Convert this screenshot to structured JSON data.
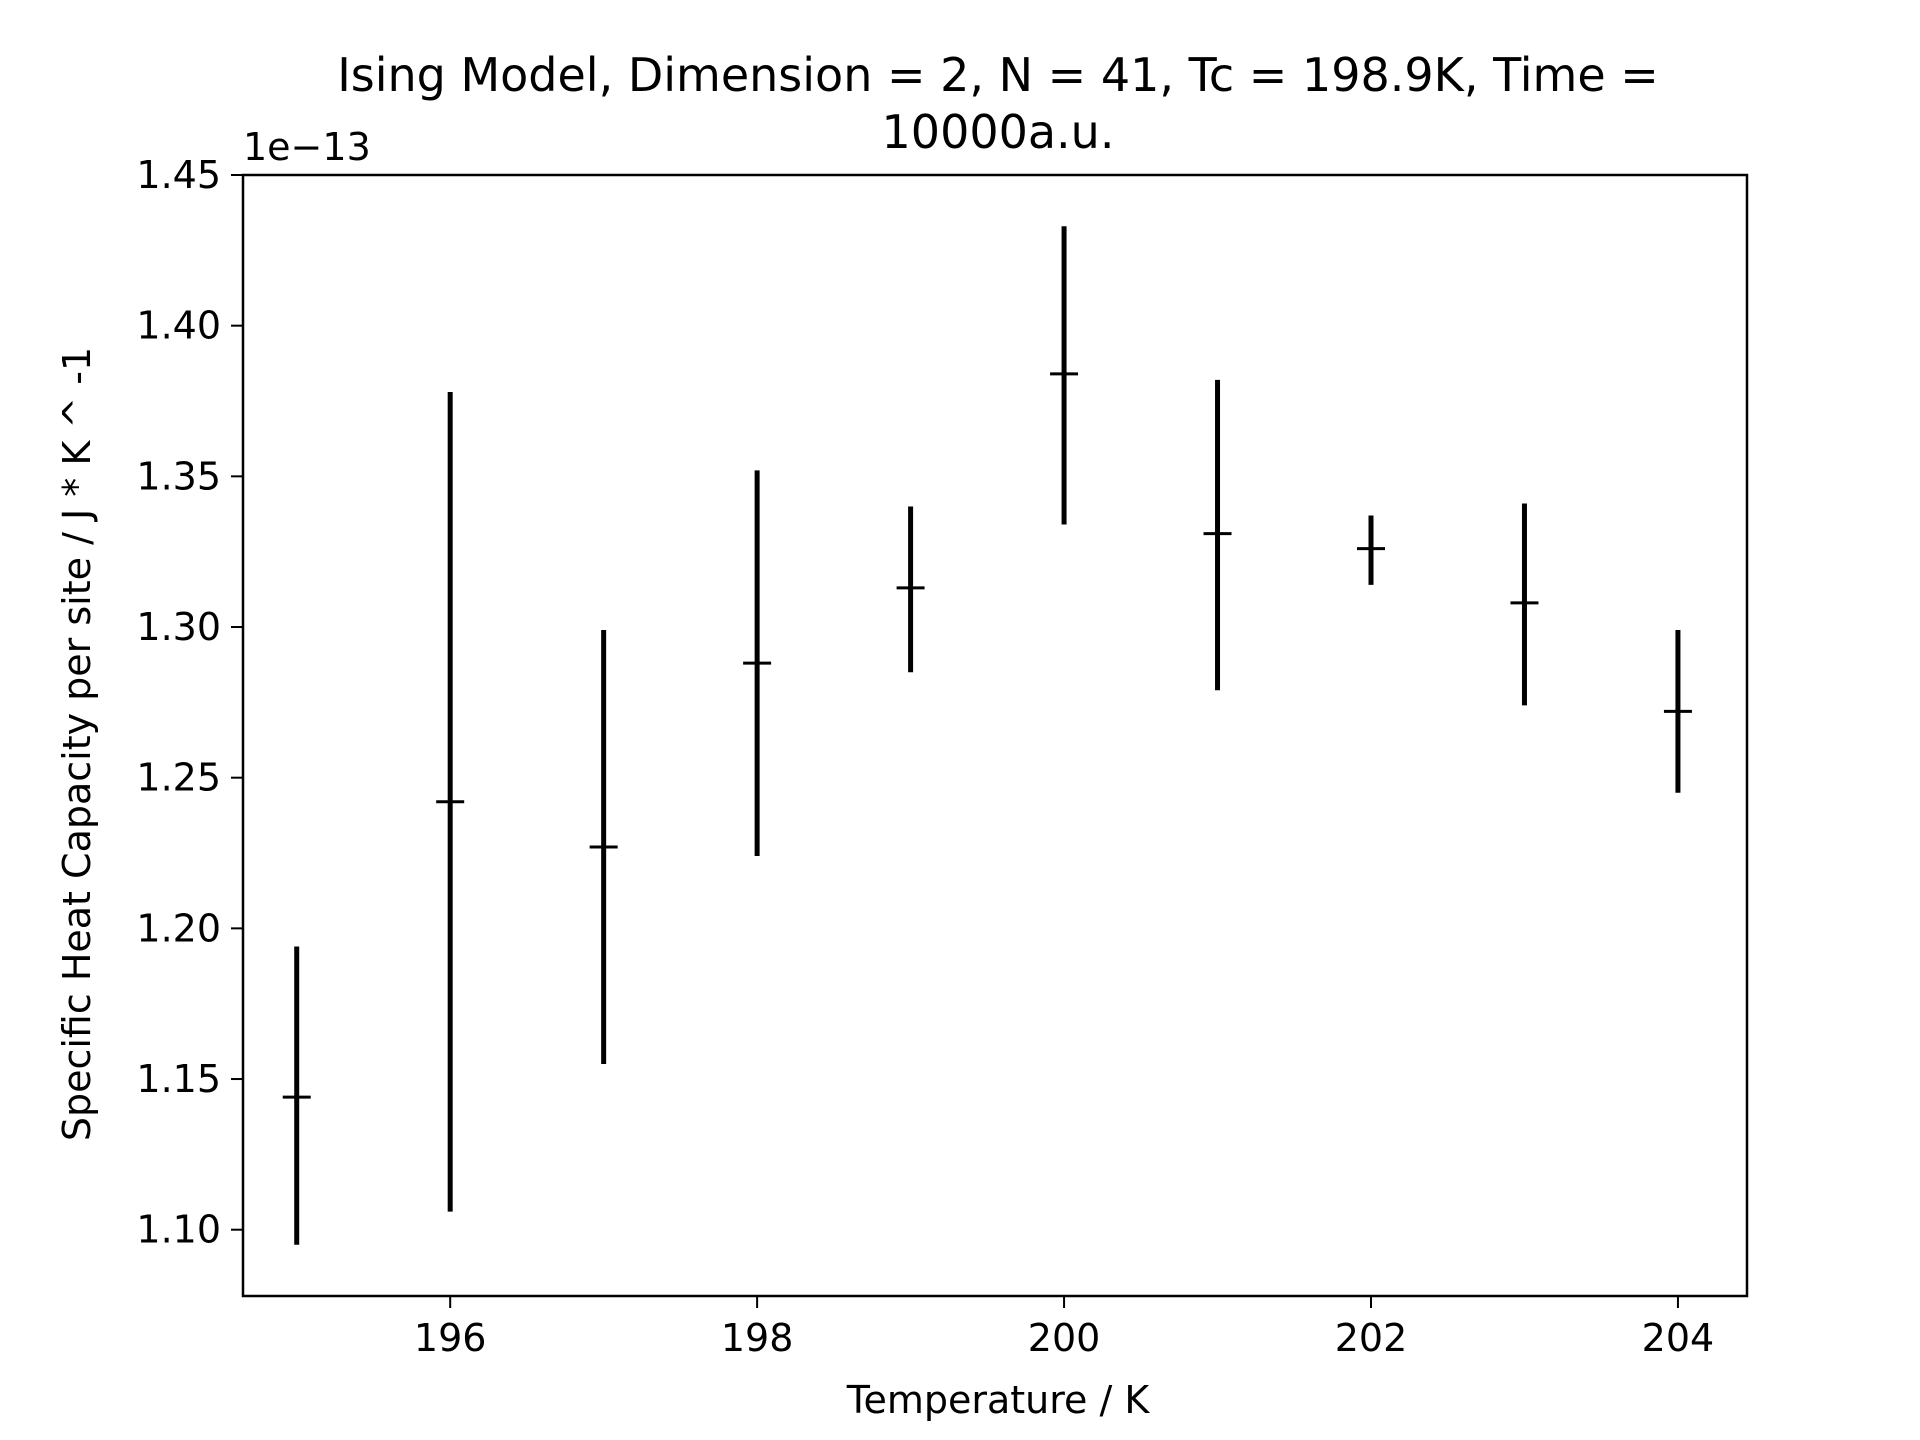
{
  "chart_data": {
    "type": "errorbar",
    "title": [
      "Ising Model, Dimension = 2, N = 41, Tc = 198.9K, Time =",
      "10000a.u."
    ],
    "xlabel": "Temperature / K",
    "ylabel": "Specific Heat Capacity per site / J * K ^ -1",
    "y_offset_label": "1e−13",
    "xlim": [
      194.65,
      204.45
    ],
    "ylim": [
      1.078,
      1.45
    ],
    "x_ticks": [
      196,
      198,
      200,
      202,
      204
    ],
    "x_tick_labels": [
      "196",
      "198",
      "200",
      "202",
      "204"
    ],
    "y_ticks": [
      1.1,
      1.15,
      1.2,
      1.25,
      1.3,
      1.35,
      1.4,
      1.45
    ],
    "y_tick_labels": [
      "1.10",
      "1.15",
      "1.20",
      "1.25",
      "1.30",
      "1.35",
      "1.40",
      "1.45"
    ],
    "grid": false,
    "series": [
      {
        "name": "Specific heat capacity",
        "color": "#000000",
        "points": [
          {
            "x": 195,
            "y": 1.144,
            "err_low": 1.095,
            "err_high": 1.194
          },
          {
            "x": 196,
            "y": 1.242,
            "err_low": 1.106,
            "err_high": 1.378
          },
          {
            "x": 197,
            "y": 1.227,
            "err_low": 1.155,
            "err_high": 1.299
          },
          {
            "x": 198,
            "y": 1.288,
            "err_low": 1.224,
            "err_high": 1.352
          },
          {
            "x": 199,
            "y": 1.313,
            "err_low": 1.285,
            "err_high": 1.34
          },
          {
            "x": 200,
            "y": 1.384,
            "err_low": 1.334,
            "err_high": 1.433
          },
          {
            "x": 201,
            "y": 1.331,
            "err_low": 1.279,
            "err_high": 1.382
          },
          {
            "x": 202,
            "y": 1.326,
            "err_low": 1.314,
            "err_high": 1.337
          },
          {
            "x": 203,
            "y": 1.308,
            "err_low": 1.274,
            "err_high": 1.341
          },
          {
            "x": 204,
            "y": 1.272,
            "err_low": 1.245,
            "err_high": 1.299
          }
        ]
      }
    ]
  }
}
